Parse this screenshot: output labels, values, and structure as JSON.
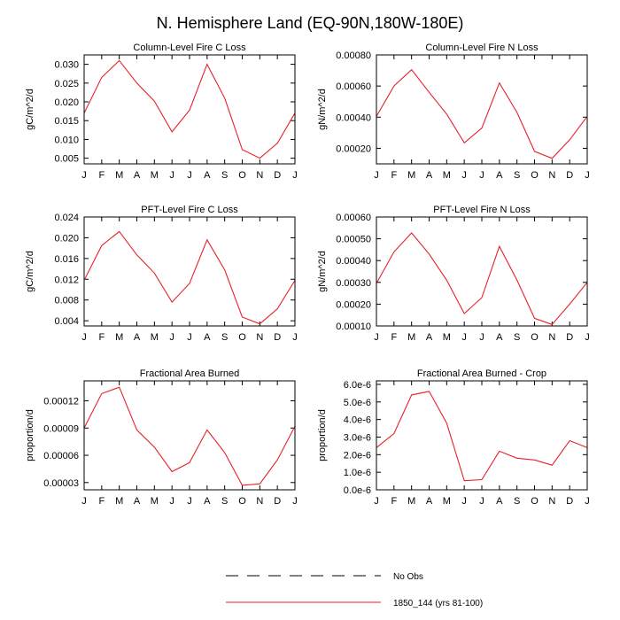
{
  "figure_title": "N. Hemisphere Land (EQ-90N,180W-180E)",
  "legend": {
    "entries": [
      {
        "label": "No Obs",
        "style": "dashed",
        "color": "#000000"
      },
      {
        "label": "1850_144 (yrs 81-100)",
        "style": "solid",
        "color": "#e8202a"
      }
    ]
  },
  "chart_data": [
    {
      "type": "line",
      "title": "Column-Level Fire C Loss",
      "ylabel": "gC/m^2/d",
      "xlabel": "",
      "categories": [
        "J",
        "F",
        "M",
        "A",
        "M",
        "J",
        "J",
        "A",
        "S",
        "O",
        "N",
        "D",
        "J"
      ],
      "ylim": [
        0.0035,
        0.0325
      ],
      "yticks": [
        0.005,
        0.01,
        0.015,
        0.02,
        0.025,
        0.03
      ],
      "ytick_labels": [
        "0.005",
        "0.010",
        "0.015",
        "0.020",
        "0.025",
        "0.030"
      ],
      "series": [
        {
          "name": "1850_144 (yrs 81-100)",
          "color": "#e8202a",
          "values": [
            0.017,
            0.0265,
            0.031,
            0.025,
            0.0202,
            0.012,
            0.0178,
            0.03,
            0.021,
            0.0073,
            0.005,
            0.009,
            0.017
          ]
        }
      ]
    },
    {
      "type": "line",
      "title": "Column-Level Fire N Loss",
      "ylabel": "gN/m^2/d",
      "xlabel": "",
      "categories": [
        "J",
        "F",
        "M",
        "A",
        "M",
        "J",
        "J",
        "A",
        "S",
        "O",
        "N",
        "D",
        "J"
      ],
      "ylim": [
        0.0001,
        0.0008
      ],
      "yticks": [
        0.0002,
        0.0004,
        0.0006,
        0.0008
      ],
      "ytick_labels": [
        "0.00020",
        "0.00040",
        "0.00060",
        "0.00080"
      ],
      "series": [
        {
          "name": "1850_144 (yrs 81-100)",
          "color": "#e8202a",
          "values": [
            0.000405,
            0.0006,
            0.000705,
            0.00056,
            0.00042,
            0.000235,
            0.00033,
            0.00062,
            0.00043,
            0.00018,
            0.000135,
            0.000255,
            0.000405
          ]
        }
      ]
    },
    {
      "type": "line",
      "title": "PFT-Level Fire C Loss",
      "ylabel": "gC/m^2/d",
      "xlabel": "",
      "categories": [
        "J",
        "F",
        "M",
        "A",
        "M",
        "J",
        "J",
        "A",
        "S",
        "O",
        "N",
        "D",
        "J"
      ],
      "ylim": [
        0.003,
        0.024
      ],
      "yticks": [
        0.004,
        0.008,
        0.012,
        0.016,
        0.02,
        0.024
      ],
      "ytick_labels": [
        "0.004",
        "0.008",
        "0.012",
        "0.016",
        "0.020",
        "0.024"
      ],
      "series": [
        {
          "name": "1850_144 (yrs 81-100)",
          "color": "#e8202a",
          "values": [
            0.0118,
            0.0185,
            0.0212,
            0.0167,
            0.0132,
            0.0076,
            0.0112,
            0.0196,
            0.0138,
            0.0047,
            0.0034,
            0.0063,
            0.0118
          ]
        }
      ]
    },
    {
      "type": "line",
      "title": "PFT-Level Fire N Loss",
      "ylabel": "gN/m^2/d",
      "xlabel": "",
      "categories": [
        "J",
        "F",
        "M",
        "A",
        "M",
        "J",
        "J",
        "A",
        "S",
        "O",
        "N",
        "D",
        "J"
      ],
      "ylim": [
        0.0001,
        0.0006
      ],
      "yticks": [
        0.0001,
        0.0002,
        0.0003,
        0.0004,
        0.0005,
        0.0006
      ],
      "ytick_labels": [
        "0.00010",
        "0.00020",
        "0.00030",
        "0.00040",
        "0.00050",
        "0.00060"
      ],
      "series": [
        {
          "name": "1850_144 (yrs 81-100)",
          "color": "#e8202a",
          "values": [
            0.000295,
            0.00044,
            0.000527,
            0.00043,
            0.00031,
            0.000157,
            0.00023,
            0.000465,
            0.00031,
            0.000135,
            0.000107,
            0.0002,
            0.0003
          ]
        }
      ]
    },
    {
      "type": "line",
      "title": "Fractional Area Burned",
      "ylabel": "proportion/d",
      "xlabel": "",
      "categories": [
        "J",
        "F",
        "M",
        "A",
        "M",
        "J",
        "J",
        "A",
        "S",
        "O",
        "N",
        "D",
        "J"
      ],
      "ylim": [
        2.2e-05,
        0.000142
      ],
      "yticks": [
        3e-05,
        6e-05,
        9e-05,
        0.00012
      ],
      "ytick_labels": [
        "0.00003",
        "0.00006",
        "0.00009",
        "0.00012"
      ],
      "series": [
        {
          "name": "1850_144 (yrs 81-100)",
          "color": "#e8202a",
          "values": [
            9e-05,
            0.000128,
            0.000135,
            8.8e-05,
            6.9e-05,
            4.2e-05,
            5.2e-05,
            8.8e-05,
            6.3e-05,
            2.7e-05,
            2.85e-05,
            5.5e-05,
            9.2e-05
          ]
        }
      ]
    },
    {
      "type": "line",
      "title": "Fractional Area Burned - Crop",
      "ylabel": "proportion/d",
      "xlabel": "",
      "categories": [
        "J",
        "F",
        "M",
        "A",
        "M",
        "J",
        "J",
        "A",
        "S",
        "O",
        "N",
        "D",
        "J"
      ],
      "ylim": [
        0.0,
        6.2e-06
      ],
      "yticks": [
        0.0,
        1e-06,
        2e-06,
        3e-06,
        4e-06,
        5e-06,
        6e-06
      ],
      "ytick_labels": [
        "0.0e-6",
        "1.0e-6",
        "2.0e-6",
        "3.0e-6",
        "4.0e-6",
        "5.0e-6",
        "6.0e-6"
      ],
      "series": [
        {
          "name": "1850_144 (yrs 81-100)",
          "color": "#e8202a",
          "values": [
            2.4e-06,
            3.2e-06,
            5.4e-06,
            5.6e-06,
            3.8e-06,
            5.2e-07,
            5.8e-07,
            2.2e-06,
            1.8e-06,
            1.7e-06,
            1.4e-06,
            2.8e-06,
            2.4e-06
          ]
        }
      ]
    }
  ]
}
